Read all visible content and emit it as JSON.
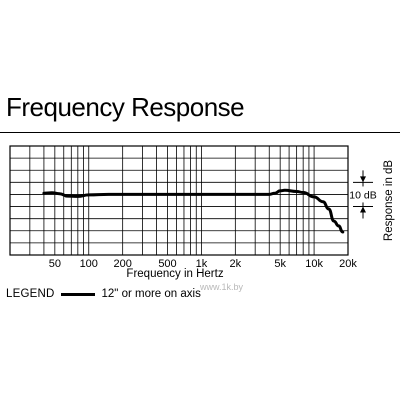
{
  "header": {
    "title": "Frequency Response"
  },
  "chart_data": {
    "type": "line",
    "title": "Frequency Response",
    "xlabel": "Frequency in Hertz",
    "ylabel": "Response in dB",
    "xscale": "log",
    "xlim": [
      20,
      20000
    ],
    "ylim": [
      -25,
      20
    ],
    "grid": true,
    "x_tick_values": [
      50,
      100,
      200,
      500,
      1000,
      2000,
      5000,
      10000,
      20000
    ],
    "x_tick_labels": [
      "50",
      "100",
      "200",
      "500",
      "1k",
      "2k",
      "5k",
      "10k",
      "20k"
    ],
    "scale_marker_label": "10 dB",
    "scale_marker_db": 10,
    "series": [
      {
        "name": "12\" or more on axis",
        "x": [
          40,
          47,
          55,
          65,
          80,
          100,
          150,
          300,
          1000,
          2000,
          4000,
          4500,
          5000,
          5500,
          7000,
          8000,
          10000,
          12000,
          13500,
          15000,
          16500,
          18000
        ],
        "y": [
          0.5,
          0.7,
          0.3,
          -0.7,
          -0.8,
          -0.2,
          0,
          0,
          0,
          0,
          0,
          0.5,
          1.5,
          1.7,
          1.2,
          0.8,
          -1,
          -3,
          -6,
          -11,
          -13,
          -15.5
        ]
      }
    ]
  },
  "legend": {
    "title": "LEGEND",
    "label": "12\" or more on axis"
  },
  "watermark": "www.1k.by"
}
